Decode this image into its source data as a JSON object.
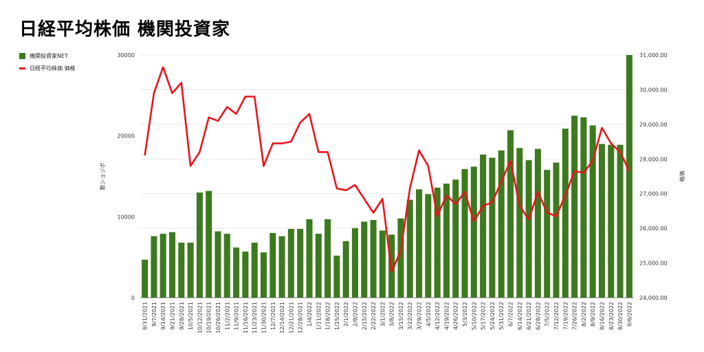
{
  "title": "日経平均株価 機関投資家",
  "legend": {
    "bar_label": "機関投資家NET",
    "line_label": "日経平均株価 価格"
  },
  "colors": {
    "bar": "#3d7a1f",
    "line": "#e8141b",
    "grid": "#e0e0e0"
  },
  "chart_data": {
    "type": "bar+line",
    "title": "日経平均株価 機関投資家",
    "ylabel_left": "数ショジポ",
    "ylabel_right": "格価",
    "ylim_left": [
      0,
      30000
    ],
    "ylim_right": [
      24000,
      31000
    ],
    "yticks_left": [
      "0",
      "10000",
      "20000",
      "30000"
    ],
    "yticks_right": [
      "24,000.00",
      "25,000.00",
      "26,000.00",
      "27,000.00",
      "28,000.00",
      "29,000.00",
      "30,000.00",
      "31,000.00"
    ],
    "categories": [
      "8/31/2021",
      "9/7/2021",
      "9/14/2021",
      "9/21/2021",
      "9/28/2021",
      "10/5/2021",
      "10/12/2021",
      "10/19/2021",
      "10/26/2021",
      "11/2/2021",
      "11/9/2021",
      "11/16/2021",
      "11/23/2021",
      "11/30/2021",
      "12/7/2021",
      "12/14/2021",
      "12/21/2021",
      "12/28/2021",
      "1/4/2022",
      "1/11/2022",
      "1/18/2022",
      "1/25/2022",
      "2/1/2022",
      "2/8/2022",
      "2/15/2022",
      "2/22/2022",
      "3/1/2022",
      "3/8/2022",
      "3/15/2022",
      "3/22/2022",
      "3/29/2022",
      "4/5/2022",
      "4/12/2022",
      "4/19/2022",
      "4/26/2022",
      "5/3/2022",
      "5/10/2022",
      "5/17/2022",
      "5/24/2022",
      "5/31/2022",
      "6/7/2022",
      "6/14/2022",
      "6/21/2022",
      "6/28/2022",
      "7/5/2022",
      "7/12/2022",
      "7/19/2022",
      "7/26/2022",
      "8/2/2022",
      "8/9/2022",
      "8/16/2022",
      "8/23/2022",
      "8/30/2022",
      "9/6/2022"
    ],
    "series": [
      {
        "name": "機関投資家NET",
        "type": "bar",
        "values": [
          4700,
          7600,
          7900,
          8100,
          6800,
          6800,
          13000,
          13200,
          8200,
          7900,
          6200,
          5700,
          6800,
          5600,
          8000,
          7600,
          8500,
          8500,
          9700,
          7900,
          9700,
          5200,
          7000,
          8600,
          9400,
          9600,
          8300,
          7800,
          9800,
          12100,
          13400,
          12800,
          13600,
          14100,
          14600,
          15900,
          16200,
          17700,
          17300,
          18200,
          20700,
          18500,
          17000,
          18400,
          15800,
          16700,
          20900,
          22500,
          22300,
          21300,
          19000,
          18900,
          18900,
          30000
        ]
      },
      {
        "name": "日経平均株価 価格",
        "type": "line",
        "values": [
          28100,
          29900,
          30650,
          29900,
          30200,
          27800,
          28200,
          29200,
          29100,
          29500,
          29300,
          29800,
          29800,
          27800,
          28450,
          28450,
          28500,
          29050,
          29300,
          28200,
          28200,
          27150,
          27100,
          27250,
          26850,
          26450,
          26850,
          24750,
          25350,
          27150,
          28250,
          27800,
          26350,
          26950,
          26700,
          27050,
          26200,
          26650,
          26750,
          27350,
          27950,
          26650,
          26250,
          27050,
          26450,
          26350,
          26950,
          27650,
          27600,
          27950,
          28900,
          28450,
          28200,
          27650
        ]
      }
    ]
  }
}
